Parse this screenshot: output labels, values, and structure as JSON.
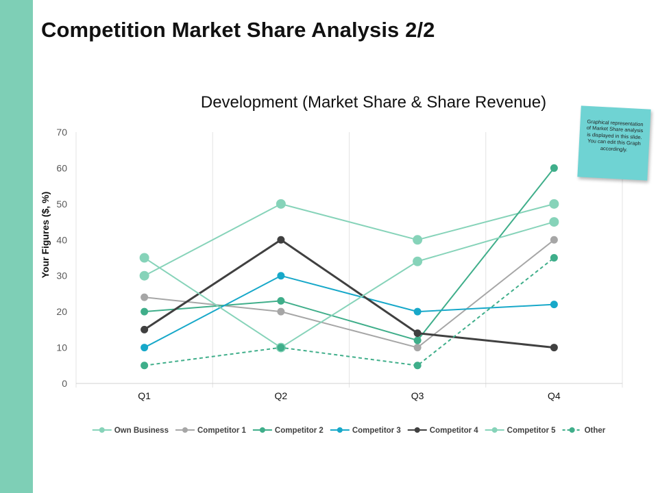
{
  "slide": {
    "title": "Competition Market Share Analysis 2/2",
    "note": "Graphical representation of Market Share analysis is displayed in this slide. You can edit this Graph accordingly."
  },
  "colors": {
    "accent_bar": "#7ecfb6",
    "note_bg": "#6fd3d3"
  },
  "chart_data": {
    "type": "line",
    "title": "Development (Market Share & Share Revenue)",
    "xlabel": "",
    "ylabel": "Your Figures ($, %)",
    "categories": [
      "Q1",
      "Q2",
      "Q3",
      "Q4"
    ],
    "ylim": [
      0,
      70
    ],
    "yticks": [
      0,
      10,
      20,
      30,
      40,
      50,
      60,
      70
    ],
    "grid": "vertical",
    "legend": "bottom",
    "series": [
      {
        "name": "Own Business",
        "values": [
          30,
          50,
          40,
          50
        ],
        "color": "#86d3b9",
        "dashed": false
      },
      {
        "name": "Competitor 1",
        "values": [
          24,
          20,
          10,
          40
        ],
        "color": "#a6a6a6",
        "dashed": false
      },
      {
        "name": "Competitor 2",
        "values": [
          20,
          23,
          12,
          60
        ],
        "color": "#3fae8a",
        "dashed": false
      },
      {
        "name": "Competitor 3",
        "values": [
          10,
          30,
          20,
          22
        ],
        "color": "#17a8c9",
        "dashed": false
      },
      {
        "name": "Competitor 4",
        "values": [
          15,
          40,
          14,
          10
        ],
        "color": "#404040",
        "dashed": false
      },
      {
        "name": "Competitor 5",
        "values": [
          35,
          10,
          34,
          45
        ],
        "color": "#86d3b9",
        "dashed": false
      },
      {
        "name": "Other",
        "values": [
          5,
          10,
          5,
          35
        ],
        "color": "#3fae8a",
        "dashed": true
      }
    ]
  }
}
